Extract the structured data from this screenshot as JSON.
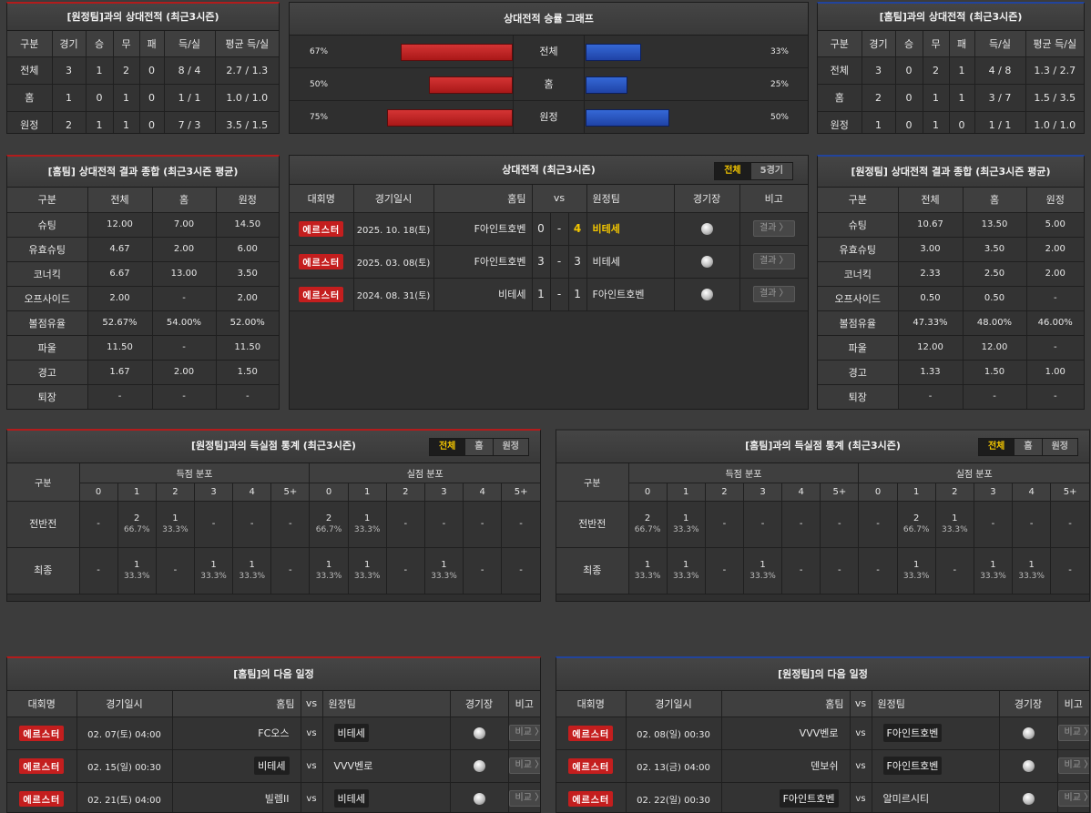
{
  "h2h_left": {
    "title": "[원정팀]과의 상대전적 (최근3시즌)",
    "headers": [
      "구분",
      "경기",
      "승",
      "무",
      "패",
      "득/실",
      "평균 득/실"
    ],
    "rows": [
      [
        "전체",
        "3",
        "1",
        "2",
        "0",
        "8 / 4",
        "2.7 / 1.3"
      ],
      [
        "홈",
        "1",
        "0",
        "1",
        "0",
        "1 / 1",
        "1.0 / 1.0"
      ],
      [
        "원정",
        "2",
        "1",
        "1",
        "0",
        "7 / 3",
        "3.5 / 1.5"
      ]
    ]
  },
  "h2h_right": {
    "title": "[홈팀]과의 상대전적 (최근3시즌)",
    "headers": [
      "구분",
      "경기",
      "승",
      "무",
      "패",
      "득/실",
      "평균 득/실"
    ],
    "rows": [
      [
        "전체",
        "3",
        "0",
        "2",
        "1",
        "4 / 8",
        "1.3 / 2.7"
      ],
      [
        "홈",
        "2",
        "0",
        "1",
        "1",
        "3 / 7",
        "1.5 / 3.5"
      ],
      [
        "원정",
        "1",
        "0",
        "1",
        "0",
        "1 / 1",
        "1.0 / 1.0"
      ]
    ]
  },
  "winrate": {
    "title": "상대전적 승률 그래프",
    "rows": [
      {
        "label": "전체",
        "left_pct": "67%",
        "right_pct": "33%",
        "left": 67,
        "right": 33
      },
      {
        "label": "홈",
        "left_pct": "50%",
        "right_pct": "25%",
        "left": 50,
        "right": 25
      },
      {
        "label": "원정",
        "left_pct": "75%",
        "right_pct": "50%",
        "left": 75,
        "right": 50
      }
    ]
  },
  "summary_left": {
    "title": "[홈팀] 상대전적 결과 종합 (최근3시즌 평균)",
    "headers": [
      "구분",
      "전체",
      "홈",
      "원정"
    ],
    "rows": [
      [
        "슈팅",
        "12.00",
        "7.00",
        "14.50"
      ],
      [
        "유효슈팅",
        "4.67",
        "2.00",
        "6.00"
      ],
      [
        "코너킥",
        "6.67",
        "13.00",
        "3.50"
      ],
      [
        "오프사이드",
        "2.00",
        "-",
        "2.00"
      ],
      [
        "볼점유율",
        "52.67%",
        "54.00%",
        "52.00%"
      ],
      [
        "파울",
        "11.50",
        "-",
        "11.50"
      ],
      [
        "경고",
        "1.67",
        "2.00",
        "1.50"
      ],
      [
        "퇴장",
        "-",
        "-",
        "-"
      ]
    ]
  },
  "summary_right": {
    "title": "[원정팀] 상대전적 결과 종합 (최근3시즌 평균)",
    "headers": [
      "구분",
      "전체",
      "홈",
      "원정"
    ],
    "rows": [
      [
        "슈팅",
        "10.67",
        "13.50",
        "5.00"
      ],
      [
        "유효슈팅",
        "3.00",
        "3.50",
        "2.00"
      ],
      [
        "코너킥",
        "2.33",
        "2.50",
        "2.00"
      ],
      [
        "오프사이드",
        "0.50",
        "0.50",
        "-"
      ],
      [
        "볼점유율",
        "47.33%",
        "48.00%",
        "46.00%"
      ],
      [
        "파울",
        "12.00",
        "12.00",
        "-"
      ],
      [
        "경고",
        "1.33",
        "1.50",
        "1.00"
      ],
      [
        "퇴장",
        "-",
        "-",
        "-"
      ]
    ]
  },
  "matches": {
    "title": "상대전적 (최근3시즌)",
    "tabs": [
      "전체",
      "5경기"
    ],
    "headers": {
      "league": "대회명",
      "date": "경기일시",
      "home": "홈팀",
      "vs": "vs",
      "away": "원정팀",
      "venue": "경기장",
      "note": "비고"
    },
    "rows": [
      {
        "league": "에르스터",
        "date": "2025. 10. 18(토)",
        "home": "F아인트호벤",
        "hs": "0",
        "sep": "-",
        "as": "4",
        "away": "비테세",
        "btn": "결과 〉"
      },
      {
        "league": "에르스터",
        "date": "2025. 03. 08(토)",
        "home": "F아인트호벤",
        "hs": "3",
        "sep": "-",
        "as": "3",
        "away": "비테세",
        "btn": "결과 〉"
      },
      {
        "league": "에르스터",
        "date": "2024. 08. 31(토)",
        "home": "비테세",
        "hs": "1",
        "sep": "-",
        "as": "1",
        "away": "F아인트호벤",
        "btn": "결과 〉"
      }
    ]
  },
  "dist_left": {
    "title": "[원정팀]과의 득실점 통계 (최근3시즌)",
    "tabs": [
      "전체",
      "홈",
      "원정"
    ],
    "col_label": "구분",
    "scored_label": "득점 분포",
    "conceded_label": "실점 분포",
    "buckets": [
      "0",
      "1",
      "2",
      "3",
      "4",
      "5+"
    ],
    "rows": [
      {
        "label": "전반전",
        "cells": [
          [
            "-",
            ""
          ],
          [
            "2",
            "66.7%"
          ],
          [
            "1",
            "33.3%"
          ],
          [
            "-",
            ""
          ],
          [
            "-",
            ""
          ],
          [
            "-",
            ""
          ],
          [
            "2",
            "66.7%"
          ],
          [
            "1",
            "33.3%"
          ],
          [
            "-",
            ""
          ],
          [
            "-",
            ""
          ],
          [
            "-",
            ""
          ],
          [
            "-",
            ""
          ]
        ]
      },
      {
        "label": "최종",
        "cells": [
          [
            "-",
            ""
          ],
          [
            "1",
            "33.3%"
          ],
          [
            "-",
            ""
          ],
          [
            "1",
            "33.3%"
          ],
          [
            "1",
            "33.3%"
          ],
          [
            "-",
            ""
          ],
          [
            "1",
            "33.3%"
          ],
          [
            "1",
            "33.3%"
          ],
          [
            "-",
            ""
          ],
          [
            "1",
            "33.3%"
          ],
          [
            "-",
            ""
          ],
          [
            "-",
            ""
          ]
        ]
      }
    ]
  },
  "dist_right": {
    "title": "[홈팀]과의 득실점 통계 (최근3시즌)",
    "tabs": [
      "전체",
      "홈",
      "원정"
    ],
    "col_label": "구분",
    "scored_label": "득점 분포",
    "conceded_label": "실점 분포",
    "buckets": [
      "0",
      "1",
      "2",
      "3",
      "4",
      "5+"
    ],
    "rows": [
      {
        "label": "전반전",
        "cells": [
          [
            "2",
            "66.7%"
          ],
          [
            "1",
            "33.3%"
          ],
          [
            "-",
            ""
          ],
          [
            "-",
            ""
          ],
          [
            "-",
            ""
          ],
          [
            "-",
            ""
          ],
          [
            "-",
            ""
          ],
          [
            "2",
            "66.7%"
          ],
          [
            "1",
            "33.3%"
          ],
          [
            "-",
            ""
          ],
          [
            "-",
            ""
          ],
          [
            "-",
            ""
          ]
        ]
      },
      {
        "label": "최종",
        "cells": [
          [
            "1",
            "33.3%"
          ],
          [
            "1",
            "33.3%"
          ],
          [
            "-",
            ""
          ],
          [
            "1",
            "33.3%"
          ],
          [
            "-",
            ""
          ],
          [
            "-",
            ""
          ],
          [
            "-",
            ""
          ],
          [
            "1",
            "33.3%"
          ],
          [
            "-",
            ""
          ],
          [
            "1",
            "33.3%"
          ],
          [
            "1",
            "33.3%"
          ],
          [
            "-",
            ""
          ]
        ]
      }
    ]
  },
  "next_left": {
    "title": "[홈팀]의 다음 일정",
    "headers": {
      "league": "대회명",
      "date": "경기일시",
      "home": "홈팀",
      "vs": "vs",
      "away": "원정팀",
      "venue": "경기장",
      "note": "비고"
    },
    "rows": [
      {
        "league": "에르스터",
        "date": "02. 07(토) 04:00",
        "home": "FC오스",
        "away": "비테세",
        "box": "away",
        "btn": "비교 〉"
      },
      {
        "league": "에르스터",
        "date": "02. 15(일) 00:30",
        "home": "비테세",
        "away": "VVV벤로",
        "box": "home",
        "btn": "비교 〉"
      },
      {
        "league": "에르스터",
        "date": "02. 21(토) 04:00",
        "home": "빌렘II",
        "away": "비테세",
        "box": "away",
        "btn": "비교 〉"
      }
    ]
  },
  "next_right": {
    "title": "[원정팀]의 다음 일정",
    "headers": {
      "league": "대회명",
      "date": "경기일시",
      "home": "홈팀",
      "vs": "vs",
      "away": "원정팀",
      "venue": "경기장",
      "note": "비고"
    },
    "rows": [
      {
        "league": "에르스터",
        "date": "02. 08(일) 00:30",
        "home": "VVV벤로",
        "away": "F아인트호벤",
        "box": "away",
        "btn": "비교 〉"
      },
      {
        "league": "에르스터",
        "date": "02. 13(금) 04:00",
        "home": "덴보쉬",
        "away": "F아인트호벤",
        "box": "away",
        "btn": "비교 〉"
      },
      {
        "league": "에르스터",
        "date": "02. 22(일) 00:30",
        "home": "F아인트호벤",
        "away": "알미르시티",
        "box": "home",
        "btn": "비교 〉"
      }
    ]
  },
  "icons": {
    "venue": "stadium-ball-icon"
  },
  "colors": {
    "home_bar": "#c62626",
    "away_bar": "#2a55c0",
    "win_score": "#f3c600",
    "league_badge": "#c41e1e"
  }
}
